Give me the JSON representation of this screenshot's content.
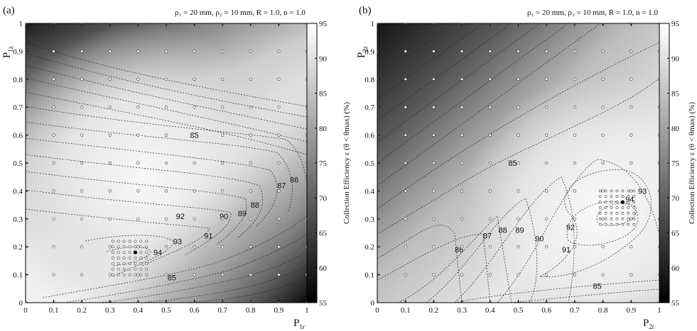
{
  "chart_data": [
    {
      "type": "heatmap",
      "panel_label": "(a)",
      "params_text": "ρ₁ = 20 mm, ρ₂ = 10 mm, R = 1.0, n = 1.0",
      "xlabel": "P1r",
      "xlabel_main": "P",
      "xlabel_sub": "1r",
      "ylabel": "P1z",
      "ylabel_main": "P",
      "ylabel_sub": "1z",
      "xlim": [
        0,
        1
      ],
      "ylim": [
        0,
        1
      ],
      "x_ticks": [
        "0",
        "0.1",
        "0.2",
        "0.3",
        "0.4",
        "0.5",
        "0.6",
        "0.7",
        "0.8",
        "0.9",
        "1"
      ],
      "y_ticks": [
        "0",
        "0.1",
        "0.2",
        "0.3",
        "0.4",
        "0.5",
        "0.6",
        "0.7",
        "0.8",
        "0.9",
        "1"
      ],
      "colorbar_label": "Collection Efficiency ε (θ < θmax) (%)",
      "colorbar_range": [
        55,
        95
      ],
      "colorbar_ticks": [
        "55",
        "60",
        "65",
        "70",
        "75",
        "80",
        "85",
        "90",
        "95"
      ],
      "optimum": [
        0.39,
        0.18
      ],
      "contour_labels": [
        {
          "text": "85",
          "x": 0.6,
          "y": 0.6
        },
        {
          "text": "86",
          "x": 0.955,
          "y": 0.44
        },
        {
          "text": "87",
          "x": 0.91,
          "y": 0.42
        },
        {
          "text": "88",
          "x": 0.815,
          "y": 0.35
        },
        {
          "text": "89",
          "x": 0.77,
          "y": 0.32
        },
        {
          "text": "90",
          "x": 0.705,
          "y": 0.31
        },
        {
          "text": "91",
          "x": 0.65,
          "y": 0.24
        },
        {
          "text": "92",
          "x": 0.55,
          "y": 0.31
        },
        {
          "text": "93",
          "x": 0.54,
          "y": 0.22
        },
        {
          "text": "94",
          "x": 0.47,
          "y": 0.18
        },
        {
          "text": "85",
          "x": 0.52,
          "y": 0.09
        }
      ]
    },
    {
      "type": "heatmap",
      "panel_label": "(b)",
      "params_text": "ρ₁ = 20 mm, ρ₂ = 10 mm, R = 1.0, n = 1.0",
      "xlabel": "P2r",
      "xlabel_main": "P",
      "xlabel_sub": "2r",
      "ylabel": "P2z",
      "ylabel_main": "P",
      "ylabel_sub": "2z",
      "xlim": [
        0,
        1
      ],
      "ylim": [
        0,
        1
      ],
      "x_ticks": [
        "0",
        "0.1",
        "0.2",
        "0.3",
        "0.4",
        "0.5",
        "0.6",
        "0.7",
        "0.8",
        "0.9",
        "1"
      ],
      "y_ticks": [
        "0",
        "0.1",
        "0.2",
        "0.3",
        "0.4",
        "0.5",
        "0.6",
        "0.7",
        "0.8",
        "0.9",
        "1"
      ],
      "colorbar_label": "Collection Efficiency ε (θ < θmax) (%)",
      "colorbar_range": [
        55,
        95
      ],
      "colorbar_ticks": [
        "55",
        "60",
        "65",
        "70",
        "75",
        "80",
        "85",
        "90",
        "95"
      ],
      "optimum": [
        0.87,
        0.36
      ],
      "contour_labels": [
        {
          "text": "85",
          "x": 0.48,
          "y": 0.5
        },
        {
          "text": "86",
          "x": 0.29,
          "y": 0.19
        },
        {
          "text": "87",
          "x": 0.39,
          "y": 0.24
        },
        {
          "text": "88",
          "x": 0.445,
          "y": 0.26
        },
        {
          "text": "89",
          "x": 0.505,
          "y": 0.26
        },
        {
          "text": "90",
          "x": 0.575,
          "y": 0.23
        },
        {
          "text": "91",
          "x": 0.67,
          "y": 0.19
        },
        {
          "text": "92",
          "x": 0.685,
          "y": 0.27
        },
        {
          "text": "93",
          "x": 0.94,
          "y": 0.4
        },
        {
          "text": "94",
          "x": 0.895,
          "y": 0.37
        },
        {
          "text": "85",
          "x": 0.78,
          "y": 0.06
        }
      ]
    }
  ]
}
